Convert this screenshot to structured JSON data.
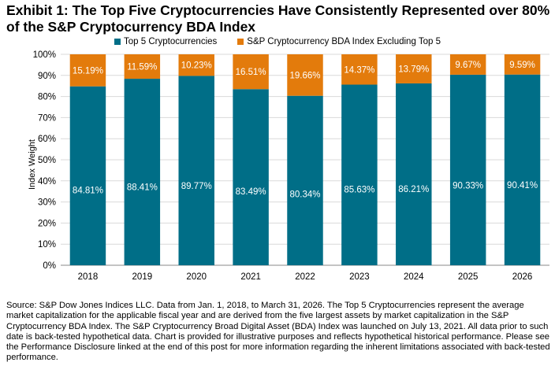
{
  "title": "Exhibit 1: The Top Five Cryptocurrencies Have Consistently Represented over 80% of the S&P Cryptocurrency BDA Index",
  "footnote": "Source: S&P Dow Jones Indices LLC. Data from Jan. 1, 2018, to March 31, 2026. The Top 5 Cryptocurrencies represent the average market capitalization for the applicable fiscal year and are derived from the five largest assets by market capitalization in the S&P Cryptocurrency BDA Index. The S&P Cryptocurrency Broad Digital Asset (BDA) Index was launched on July 13, 2021. All data prior to such date is back-tested hypothetical data. Chart is provided for illustrative purposes and reflects hypothetical historical performance. Please see the Performance Disclosure linked at the end of this post for more information regarding the inherent limitations associated with back-tested performance.",
  "chart_data": {
    "type": "bar",
    "stacked": true,
    "categories": [
      "2018",
      "2019",
      "2020",
      "2021",
      "2022",
      "2023",
      "2024",
      "2025",
      "2026"
    ],
    "series": [
      {
        "name": "Top 5 Cryptocurrencies",
        "color": "#006E87",
        "values": [
          84.81,
          88.41,
          89.77,
          83.49,
          80.34,
          85.63,
          86.21,
          90.33,
          90.41
        ],
        "labels": [
          "84.81%",
          "88.41%",
          "89.77%",
          "83.49%",
          "80.34%",
          "85.63%",
          "86.21%",
          "90.33%",
          "90.41%"
        ]
      },
      {
        "name": "S&P Cryptocurrency BDA Index Excluding Top 5",
        "color": "#E37B0C",
        "values": [
          15.19,
          11.59,
          10.23,
          16.51,
          19.66,
          14.37,
          13.79,
          9.67,
          9.59
        ],
        "labels": [
          "15.19%",
          "11.59%",
          "10.23%",
          "16.51%",
          "19.66%",
          "14.37%",
          "13.79%",
          "9.67%",
          "9.59%"
        ]
      }
    ],
    "ylabel": "Index Weight",
    "xlabel": "",
    "ylim": [
      0,
      100
    ],
    "yticks": [
      "0%",
      "10%",
      "20%",
      "30%",
      "40%",
      "50%",
      "60%",
      "70%",
      "80%",
      "90%",
      "100%"
    ],
    "grid": true,
    "legend_position": "top"
  }
}
